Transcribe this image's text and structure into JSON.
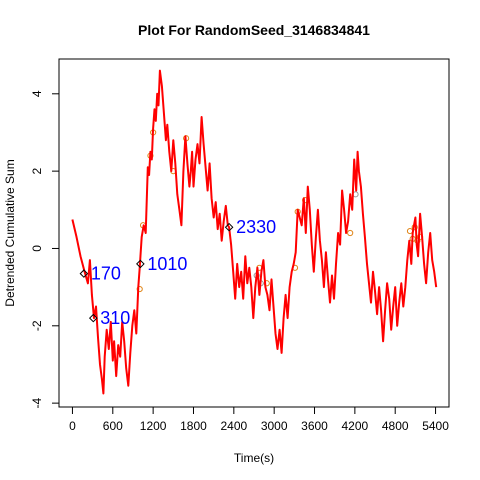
{
  "chart_data": {
    "type": "line",
    "title": "Plot For RandomSeed_3146834841",
    "xlabel": "Time(s)",
    "ylabel": "Detrended Cumulative Sum",
    "xlim": [
      -200,
      5600
    ],
    "ylim": [
      -4.1,
      4.9
    ],
    "xticks": [
      0,
      600,
      1200,
      1800,
      2400,
      3000,
      3600,
      4200,
      4800,
      5400
    ],
    "yticks": [
      -4,
      -2,
      0,
      2,
      4
    ],
    "series": [
      {
        "color": "#ff0000",
        "points": [
          [
            0,
            0.75
          ],
          [
            60,
            0.3
          ],
          [
            120,
            -0.2
          ],
          [
            180,
            -0.6
          ],
          [
            230,
            -0.9
          ],
          [
            260,
            -0.3
          ],
          [
            290,
            -1.2
          ],
          [
            320,
            -1.8
          ],
          [
            350,
            -1.5
          ],
          [
            380,
            -2.3
          ],
          [
            410,
            -3.0
          ],
          [
            440,
            -3.4
          ],
          [
            460,
            -3.75
          ],
          [
            480,
            -2.8
          ],
          [
            510,
            -2.1
          ],
          [
            540,
            -2.6
          ],
          [
            570,
            -1.9
          ],
          [
            600,
            -2.9
          ],
          [
            620,
            -2.4
          ],
          [
            650,
            -3.3
          ],
          [
            680,
            -2.5
          ],
          [
            710,
            -2.8
          ],
          [
            740,
            -1.9
          ],
          [
            770,
            -2.4
          ],
          [
            800,
            -3.1
          ],
          [
            830,
            -3.55
          ],
          [
            860,
            -2.7
          ],
          [
            890,
            -2.0
          ],
          [
            920,
            -1.6
          ],
          [
            950,
            -2.2
          ],
          [
            980,
            -1.0
          ],
          [
            1000,
            -0.5
          ],
          [
            1030,
            0.3
          ],
          [
            1060,
            0.6
          ],
          [
            1090,
            0.4
          ],
          [
            1120,
            2.1
          ],
          [
            1140,
            1.9
          ],
          [
            1160,
            2.5
          ],
          [
            1180,
            2.3
          ],
          [
            1200,
            3.1
          ],
          [
            1220,
            3.6
          ],
          [
            1240,
            3.3
          ],
          [
            1260,
            4.0
          ],
          [
            1280,
            3.7
          ],
          [
            1300,
            4.6
          ],
          [
            1330,
            4.2
          ],
          [
            1360,
            3.5
          ],
          [
            1390,
            2.8
          ],
          [
            1410,
            3.2
          ],
          [
            1440,
            2.5
          ],
          [
            1470,
            2.0
          ],
          [
            1500,
            2.8
          ],
          [
            1530,
            2.2
          ],
          [
            1560,
            1.4
          ],
          [
            1590,
            1.0
          ],
          [
            1620,
            0.6
          ],
          [
            1650,
            2.0
          ],
          [
            1680,
            2.9
          ],
          [
            1710,
            2.2
          ],
          [
            1740,
            1.6
          ],
          [
            1760,
            2.0
          ],
          [
            1780,
            2.5
          ],
          [
            1800,
            1.6
          ],
          [
            1830,
            2.3
          ],
          [
            1860,
            2.7
          ],
          [
            1890,
            2.2
          ],
          [
            1920,
            3.4
          ],
          [
            1950,
            2.7
          ],
          [
            1980,
            2.1
          ],
          [
            2010,
            1.5
          ],
          [
            2040,
            2.2
          ],
          [
            2070,
            1.3
          ],
          [
            2100,
            0.8
          ],
          [
            2130,
            1.2
          ],
          [
            2160,
            0.5
          ],
          [
            2190,
            0.9
          ],
          [
            2220,
            0.2
          ],
          [
            2250,
            0.7
          ],
          [
            2280,
            1.1
          ],
          [
            2310,
            0.6
          ],
          [
            2330,
            0.55
          ],
          [
            2360,
            0.1
          ],
          [
            2390,
            -0.6
          ],
          [
            2420,
            -1.3
          ],
          [
            2450,
            -0.4
          ],
          [
            2480,
            -1.0
          ],
          [
            2510,
            -0.6
          ],
          [
            2540,
            -1.3
          ],
          [
            2570,
            -0.2
          ],
          [
            2600,
            -0.9
          ],
          [
            2630,
            -0.5
          ],
          [
            2660,
            -1.0
          ],
          [
            2690,
            -1.8
          ],
          [
            2720,
            -1.0
          ],
          [
            2750,
            -0.5
          ],
          [
            2780,
            -1.2
          ],
          [
            2810,
            -0.6
          ],
          [
            2840,
            -0.3
          ],
          [
            2870,
            -1.0
          ],
          [
            2900,
            -1.2
          ],
          [
            2930,
            -1.6
          ],
          [
            2960,
            -0.8
          ],
          [
            2990,
            -1.5
          ],
          [
            3020,
            -2.2
          ],
          [
            3050,
            -2.6
          ],
          [
            3080,
            -2.1
          ],
          [
            3110,
            -2.7
          ],
          [
            3140,
            -1.8
          ],
          [
            3170,
            -1.2
          ],
          [
            3200,
            -1.8
          ],
          [
            3230,
            -1.0
          ],
          [
            3260,
            -0.6
          ],
          [
            3290,
            -0.4
          ],
          [
            3320,
            -0.1
          ],
          [
            3350,
            1.0
          ],
          [
            3380,
            0.8
          ],
          [
            3410,
            0.6
          ],
          [
            3440,
            1.3
          ],
          [
            3470,
            0.4
          ],
          [
            3500,
            1.6
          ],
          [
            3530,
            1.0
          ],
          [
            3560,
            0.1
          ],
          [
            3590,
            -0.6
          ],
          [
            3620,
            0.3
          ],
          [
            3650,
            1.0
          ],
          [
            3680,
            0.2
          ],
          [
            3710,
            -0.3
          ],
          [
            3740,
            -1.0
          ],
          [
            3770,
            -0.1
          ],
          [
            3800,
            -0.8
          ],
          [
            3830,
            -1.4
          ],
          [
            3860,
            -0.7
          ],
          [
            3890,
            -1.3
          ],
          [
            3920,
            -0.4
          ],
          [
            3950,
            0.4
          ],
          [
            3980,
            0.1
          ],
          [
            4010,
            1.5
          ],
          [
            4040,
            1.0
          ],
          [
            4070,
            0.4
          ],
          [
            4100,
            0.7
          ],
          [
            4130,
            1.4
          ],
          [
            4160,
            1.0
          ],
          [
            4190,
            2.3
          ],
          [
            4220,
            1.5
          ],
          [
            4240,
            2.5
          ],
          [
            4260,
            2.0
          ],
          [
            4290,
            1.6
          ],
          [
            4320,
            0.9
          ],
          [
            4350,
            0.3
          ],
          [
            4380,
            -0.4
          ],
          [
            4410,
            -0.9
          ],
          [
            4440,
            -1.4
          ],
          [
            4470,
            -0.6
          ],
          [
            4500,
            -1.1
          ],
          [
            4530,
            -1.7
          ],
          [
            4560,
            -1.0
          ],
          [
            4590,
            -1.6
          ],
          [
            4620,
            -2.4
          ],
          [
            4650,
            -1.6
          ],
          [
            4680,
            -0.9
          ],
          [
            4710,
            -1.3
          ],
          [
            4740,
            -2.1
          ],
          [
            4770,
            -1.5
          ],
          [
            4800,
            -1.0
          ],
          [
            4830,
            -2.0
          ],
          [
            4860,
            -1.4
          ],
          [
            4890,
            -0.9
          ],
          [
            4920,
            -1.5
          ],
          [
            4950,
            -1.0
          ],
          [
            4980,
            -0.3
          ],
          [
            5010,
            0.2
          ],
          [
            5040,
            -0.4
          ],
          [
            5060,
            0.4
          ],
          [
            5080,
            0.6
          ],
          [
            5100,
            0.8
          ],
          [
            5120,
            0.1
          ],
          [
            5140,
            -0.2
          ],
          [
            5170,
            0.9
          ],
          [
            5200,
            0.3
          ],
          [
            5230,
            -0.4
          ],
          [
            5260,
            -0.9
          ],
          [
            5290,
            -0.1
          ],
          [
            5320,
            0.4
          ],
          [
            5350,
            -0.3
          ],
          [
            5380,
            -0.6
          ],
          [
            5410,
            -1.0
          ]
        ]
      }
    ],
    "orange_markers": [
      [
        1000,
        -1.05
      ],
      [
        1050,
        0.6
      ],
      [
        1160,
        2.4
      ],
      [
        1200,
        3.0
      ],
      [
        1500,
        2.0
      ],
      [
        1690,
        2.85
      ],
      [
        2780,
        -0.5
      ],
      [
        2890,
        -0.9
      ],
      [
        3310,
        -0.5
      ],
      [
        3350,
        0.95
      ],
      [
        3460,
        1.25
      ],
      [
        4130,
        0.4
      ],
      [
        5020,
        0.45
      ],
      [
        5060,
        0.25
      ],
      [
        5090,
        0.55
      ],
      [
        5130,
        0.2
      ],
      [
        5170,
        0.3
      ]
    ],
    "gray_markers": [
      [
        2740,
        -0.7
      ],
      [
        2800,
        -0.9
      ],
      [
        4210,
        1.4
      ]
    ],
    "annotations": [
      {
        "label": "170",
        "x": 170,
        "y": -0.65
      },
      {
        "label": "310",
        "x": 310,
        "y": -1.8
      },
      {
        "label": "1010",
        "x": 1010,
        "y": -0.4
      },
      {
        "label": "2330",
        "x": 2330,
        "y": 0.55
      }
    ]
  }
}
